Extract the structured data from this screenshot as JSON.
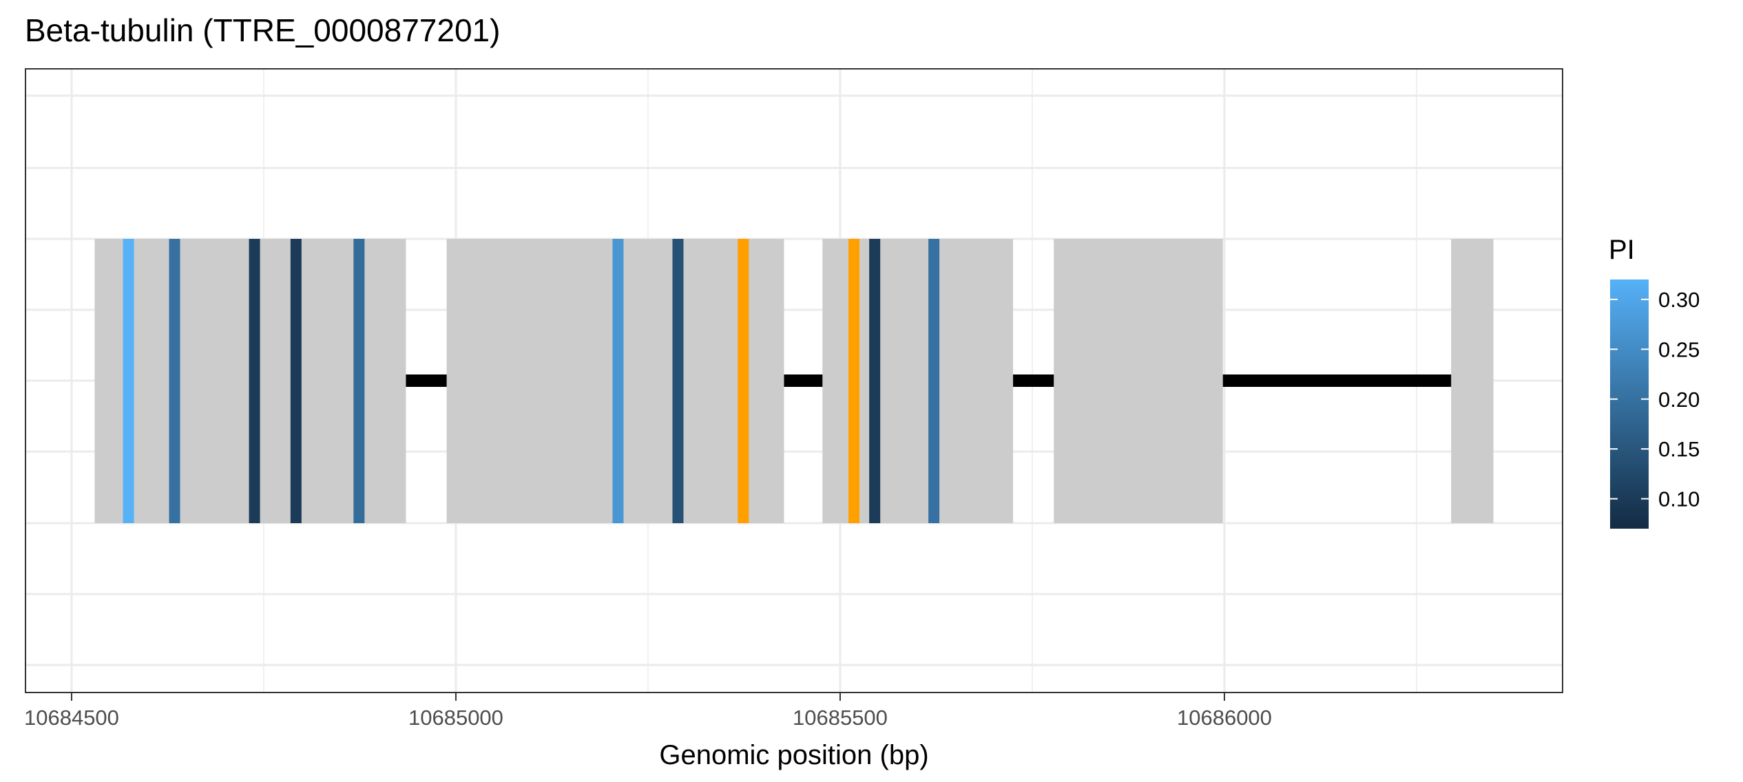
{
  "chart_data": {
    "type": "gene-structure",
    "title": "Beta-tubulin (TTRE_0000877201)",
    "xlabel": "Genomic position (bp)",
    "ylabel": "",
    "xlim": [
      10684440,
      10686440
    ],
    "x_ticks": [
      {
        "value": 10684500,
        "label": "10684500"
      },
      {
        "value": 10685000,
        "label": "10685000"
      },
      {
        "value": 10685500,
        "label": "10685500"
      },
      {
        "value": 10686000,
        "label": "10686000"
      }
    ],
    "grid": true,
    "exons": [
      {
        "start": 10684530,
        "end": 10684935
      },
      {
        "start": 10684988,
        "end": 10685427
      },
      {
        "start": 10685477,
        "end": 10685725
      },
      {
        "start": 10685778,
        "end": 10685998
      },
      {
        "start": 10686295,
        "end": 10686350
      }
    ],
    "introns": [
      {
        "start": 10684935,
        "end": 10684988
      },
      {
        "start": 10685427,
        "end": 10685477
      },
      {
        "start": 10685725,
        "end": 10685778
      },
      {
        "start": 10685998,
        "end": 10686295
      }
    ],
    "exon_color": "#cccccc",
    "intron_color": "#000000",
    "variants": [
      {
        "position": 10684574,
        "pi": 0.32
      },
      {
        "position": 10684634,
        "pi": 0.2
      },
      {
        "position": 10684738,
        "pi": 0.1
      },
      {
        "position": 10684792,
        "pi": 0.1
      },
      {
        "position": 10684874,
        "pi": 0.19
      },
      {
        "position": 10685211,
        "pi": 0.27
      },
      {
        "position": 10685289,
        "pi": 0.14
      },
      {
        "position": 10685374,
        "pi": null,
        "highlight": true
      },
      {
        "position": 10685518,
        "pi": null,
        "highlight": true
      },
      {
        "position": 10685545,
        "pi": 0.1
      },
      {
        "position": 10685622,
        "pi": 0.2
      }
    ],
    "highlight_color": "#ff9f00",
    "legend": {
      "title": "PI",
      "placement": "right",
      "min": 0.07,
      "max": 0.32,
      "low_color": "#132b43",
      "high_color": "#56b1f7",
      "ticks": [
        {
          "value": 0.3,
          "label": "0.30"
        },
        {
          "value": 0.25,
          "label": "0.25"
        },
        {
          "value": 0.2,
          "label": "0.20"
        },
        {
          "value": 0.15,
          "label": "0.15"
        },
        {
          "value": 0.1,
          "label": "0.10"
        }
      ]
    }
  }
}
